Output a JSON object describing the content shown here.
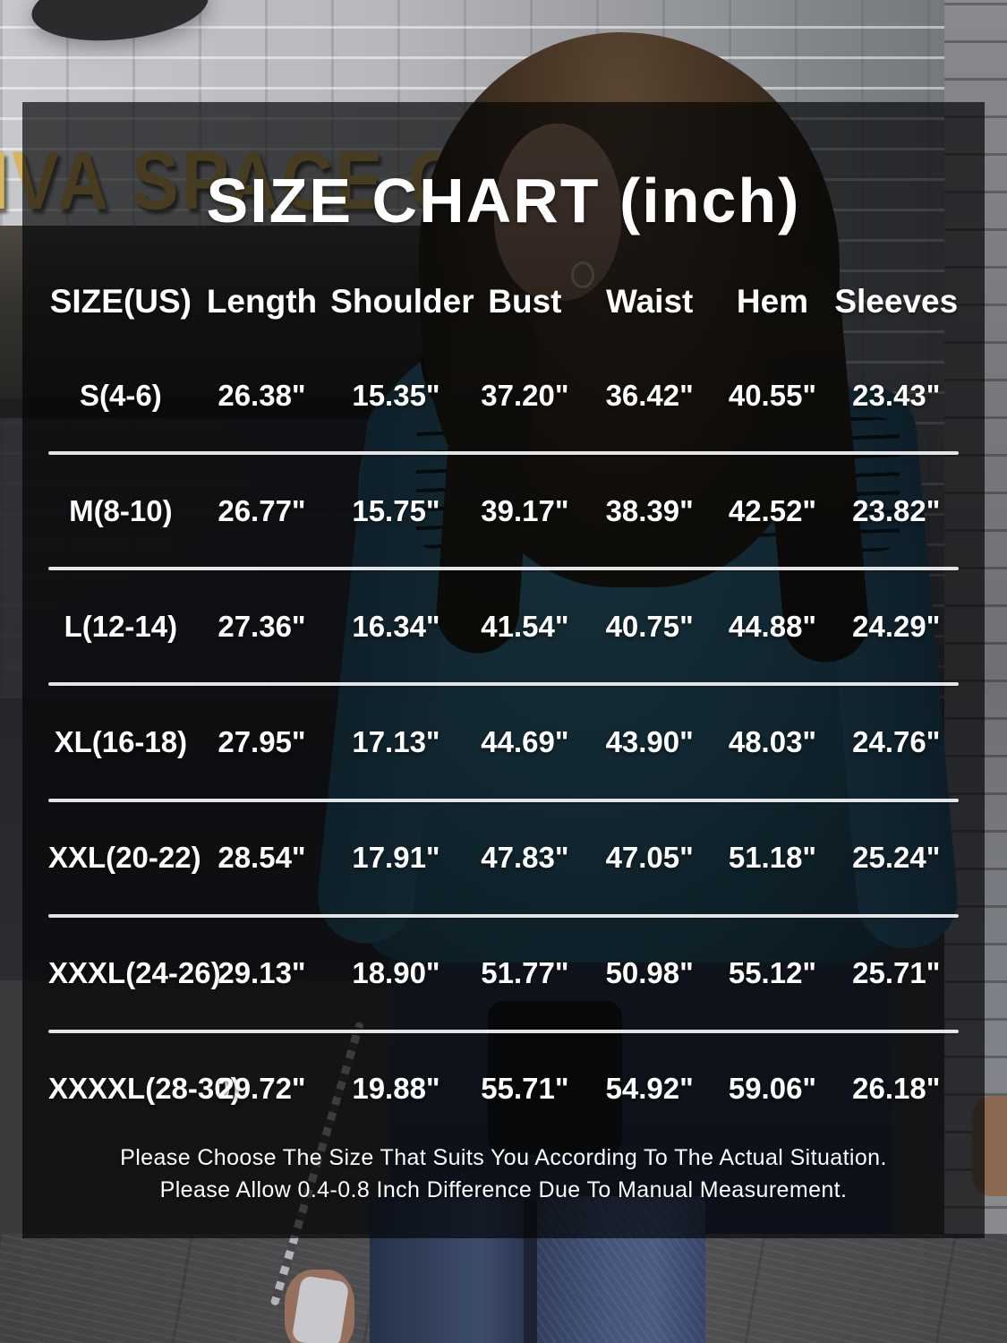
{
  "title": "SIZE CHART (inch)",
  "table": {
    "columns": [
      "SIZE(US)",
      "Length",
      "Shoulder",
      "Bust",
      "Waist",
      "Hem",
      "Sleeves"
    ],
    "rows": [
      {
        "size": "S(4-6)",
        "values": [
          "26.38\"",
          "15.35\"",
          "37.20\"",
          "36.42\"",
          "40.55\"",
          "23.43\""
        ]
      },
      {
        "size": "M(8-10)",
        "values": [
          "26.77\"",
          "15.75\"",
          "39.17\"",
          "38.39\"",
          "42.52\"",
          "23.82\""
        ]
      },
      {
        "size": "L(12-14)",
        "values": [
          "27.36\"",
          "16.34\"",
          "41.54\"",
          "40.75\"",
          "44.88\"",
          "24.29\""
        ]
      },
      {
        "size": "XL(16-18)",
        "values": [
          "27.95\"",
          "17.13\"",
          "44.69\"",
          "43.90\"",
          "48.03\"",
          "24.76\""
        ]
      },
      {
        "size": "XXL(20-22)",
        "values": [
          "28.54\"",
          "17.91\"",
          "47.83\"",
          "47.05\"",
          "51.18\"",
          "25.24\""
        ]
      },
      {
        "size": "XXXL(24-26)",
        "values": [
          "29.13\"",
          "18.90\"",
          "51.77\"",
          "50.98\"",
          "55.12\"",
          "25.71\""
        ]
      },
      {
        "size": "XXXXL(28-30)",
        "values": [
          "29.72\"",
          "19.88\"",
          "55.71\"",
          "54.92\"",
          "59.06\"",
          "26.18\""
        ]
      }
    ]
  },
  "footer": {
    "line1": "Please Choose The Size That Suits You According To The Actual Situation.",
    "line2": "Please Allow 0.4-0.8 Inch Difference Due To Manual Measurement."
  },
  "background": {
    "sign_text": "IVA SPACE COFFEE",
    "shirt_color_hex": "#3a7f9e",
    "sign_color_hex": "#d8b45c",
    "divider_color_hex": "#e4e4e6",
    "overlay_rgba": "rgba(1,3,5,0.68)"
  }
}
